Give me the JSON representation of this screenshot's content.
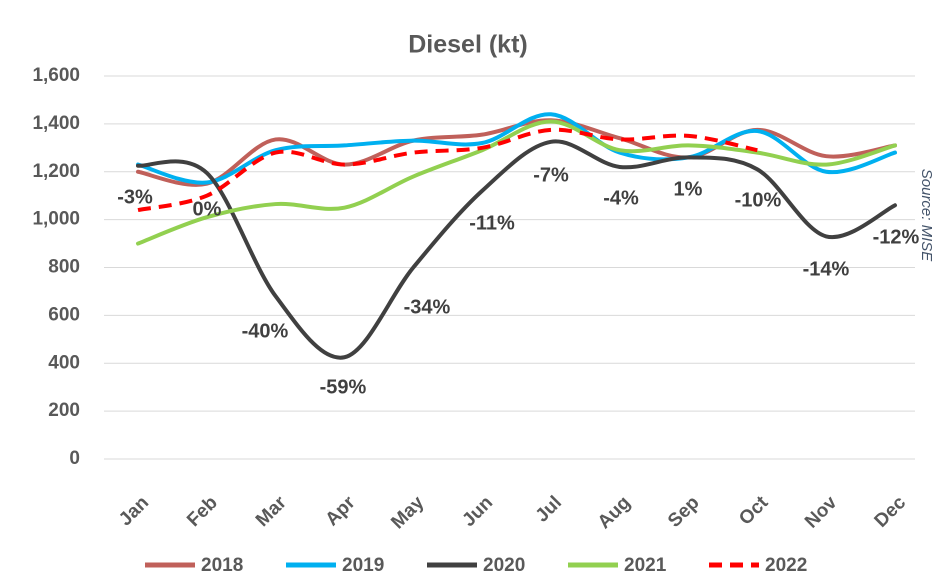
{
  "chart_data": {
    "type": "line",
    "title": "Diesel (kt)",
    "source": "Source: MISE",
    "categories": [
      "Jan",
      "Feb",
      "Mar",
      "Apr",
      "May",
      "Jun",
      "Jul",
      "Aug",
      "Sep",
      "Oct",
      "Nov",
      "Dec"
    ],
    "ylim": [
      0,
      1600
    ],
    "yticks": [
      0,
      200,
      400,
      600,
      800,
      {
        "value": 1000,
        "label": "1,000"
      },
      {
        "value": 1200,
        "label": "1,200"
      },
      {
        "value": 1400,
        "label": "1,400"
      },
      {
        "value": 1600,
        "label": "1,600"
      }
    ],
    "grid": true,
    "legend": "bottom",
    "series": [
      {
        "name": "2018",
        "color": "#c0605a",
        "values": [
          1200,
          1150,
          1335,
          1230,
          1330,
          1355,
          1415,
          1340,
          1260,
          1375,
          1265,
          1310
        ]
      },
      {
        "name": "2019",
        "color": "#00b0f0",
        "values": [
          1230,
          1155,
          1290,
          1310,
          1330,
          1320,
          1440,
          1280,
          1260,
          1370,
          1200,
          1280
        ]
      },
      {
        "name": "2020",
        "color": "#404040",
        "values": [
          1225,
          1195,
          680,
          425,
          800,
          1120,
          1325,
          1220,
          1260,
          1210,
          930,
          1060
        ]
      },
      {
        "name": "2021",
        "color": "#92d050",
        "values": [
          900,
          1010,
          1065,
          1050,
          1180,
          1290,
          1410,
          1290,
          1310,
          1280,
          1230,
          1310
        ]
      },
      {
        "name": "2022",
        "color": "#ff0000",
        "dashed": true,
        "values": [
          1040,
          1100,
          1280,
          1230,
          1280,
          1300,
          1375,
          1335,
          1350,
          1290,
          null,
          null
        ]
      }
    ],
    "annotations": [
      "-3%",
      "0%",
      "-40%",
      "-59%",
      "-34%",
      "-11%",
      "-7%",
      "-4%",
      "1%",
      "-10%",
      "-14%",
      "-12%"
    ]
  }
}
